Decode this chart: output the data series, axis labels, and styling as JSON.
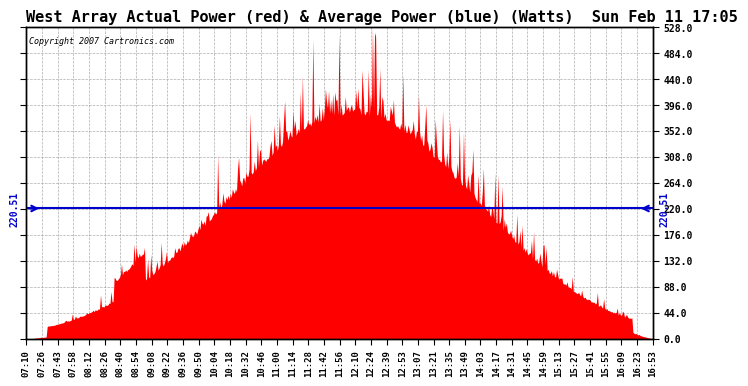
{
  "title": "West Array Actual Power (red) & Average Power (blue) (Watts)  Sun Feb 11 17:05",
  "copyright": "Copyright 2007 Cartronics.com",
  "average_power": 220.51,
  "ymin": 0.0,
  "ymax": 528.0,
  "yticks": [
    0.0,
    44.0,
    88.0,
    132.0,
    176.0,
    220.0,
    264.0,
    308.0,
    352.0,
    396.0,
    440.0,
    484.0,
    528.0
  ],
  "bar_color": "#FF0000",
  "avg_line_color": "#0000CC",
  "background_color": "#FFFFFF",
  "plot_bg_color": "#FFFFFF",
  "grid_color": "#999999",
  "title_fontsize": 11,
  "xtick_labels": [
    "07:10",
    "07:26",
    "07:43",
    "07:58",
    "08:12",
    "08:26",
    "08:40",
    "08:54",
    "09:08",
    "09:22",
    "09:36",
    "09:50",
    "10:04",
    "10:18",
    "10:32",
    "10:46",
    "11:00",
    "11:14",
    "11:28",
    "11:42",
    "11:56",
    "12:10",
    "12:24",
    "12:39",
    "12:53",
    "13:07",
    "13:21",
    "13:35",
    "13:49",
    "14:03",
    "14:17",
    "14:31",
    "14:45",
    "14:59",
    "15:13",
    "15:27",
    "15:41",
    "15:55",
    "16:09",
    "16:23",
    "16:53"
  ],
  "num_points": 600
}
